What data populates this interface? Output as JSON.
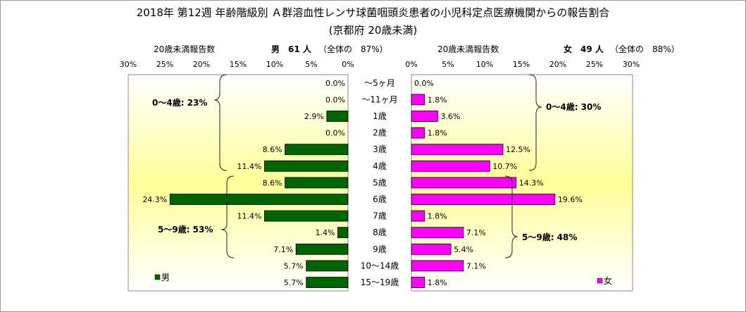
{
  "title": "2018年 第12週 年齢階級別 Ａ群溶血性レンサ球菌咽頭炎患者の小児科定点医療機関からの報告割合",
  "subtitle": "(京都府 20歳未満)",
  "header": {
    "male_report_label": "20歳未満報告数",
    "male_count": "男　61 人",
    "male_share": "（全体の　87%）",
    "female_report_label": "20歳未満報告数",
    "female_count": "女　49 人",
    "female_share": "（全体の　88%）"
  },
  "annotations": {
    "male_0_4": "0～4歳: 23%",
    "male_5_9": "5～9歳: 53%",
    "female_0_4": "0～4歳: 30%",
    "female_5_9": "5～9歳: 48%"
  },
  "colors": {
    "male": "#006400",
    "female": "#ff00ff",
    "bg_center": "#ffff99",
    "bg_edge": "#ffffff"
  },
  "chart_data": {
    "type": "bar",
    "orientation": "horizontal-butterfly",
    "categories": [
      "～5ヶ月",
      "～11ヶ月",
      "1歳",
      "2歳",
      "3歳",
      "4歳",
      "5歳",
      "6歳",
      "7歳",
      "8歳",
      "9歳",
      "10～14歳",
      "15～19歳"
    ],
    "xlim": [
      0,
      30
    ],
    "ticks": [
      0,
      5,
      10,
      15,
      20,
      25,
      30
    ],
    "tick_labels": [
      "0%",
      "5%",
      "10%",
      "15%",
      "20%",
      "25%",
      "30%"
    ],
    "series": [
      {
        "name": "男",
        "values": [
          0.0,
          0.0,
          2.9,
          0.0,
          8.6,
          11.4,
          8.6,
          24.3,
          11.4,
          1.4,
          7.1,
          5.7,
          5.7
        ],
        "labels": [
          "0.0%",
          "0.0%",
          "2.9%",
          "0.0%",
          "8.6%",
          "11.4%",
          "8.6%",
          "24.3%",
          "11.4%",
          "1.4%",
          "7.1%",
          "5.7%",
          "5.7%"
        ]
      },
      {
        "name": "女",
        "values": [
          0.0,
          1.8,
          3.6,
          1.8,
          12.5,
          10.7,
          14.3,
          19.6,
          1.8,
          7.1,
          5.4,
          7.1,
          1.8
        ],
        "labels": [
          "0.0%",
          "1.8%",
          "3.6%",
          "1.8%",
          "12.5%",
          "10.7%",
          "14.3%",
          "19.6%",
          "1.8%",
          "7.1%",
          "5.4%",
          "7.1%",
          "1.8%"
        ]
      }
    ],
    "legend": [
      "男",
      "女"
    ]
  }
}
